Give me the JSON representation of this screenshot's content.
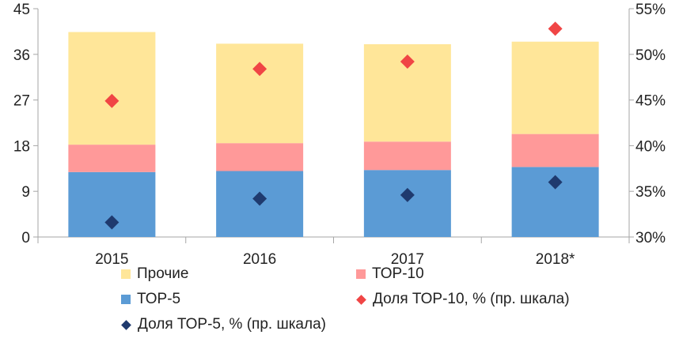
{
  "chart_data": {
    "type": "bar",
    "stacked": true,
    "categories": [
      "2015",
      "2016",
      "2017",
      "2018*"
    ],
    "series": [
      {
        "name": "ТОР-5",
        "color": "#5b9bd5",
        "values": [
          12.8,
          13.0,
          13.2,
          13.8
        ]
      },
      {
        "name": "ТОР-10",
        "color": "#ff9999",
        "values": [
          5.4,
          5.5,
          5.6,
          6.5
        ]
      },
      {
        "name": "Прочие",
        "color": "#ffe699",
        "values": [
          22.2,
          19.6,
          19.2,
          18.2
        ]
      }
    ],
    "line_series": [
      {
        "name": "Доля ТОР-10, % (пр. шкала)",
        "color": "#f04545",
        "axis": "right",
        "values": [
          44.9,
          48.4,
          49.2,
          52.8
        ]
      },
      {
        "name": "Доля ТОР-5, % (пр. шкала)",
        "color": "#1f3a6e",
        "axis": "right",
        "values": [
          31.6,
          34.2,
          34.6,
          36.0
        ]
      }
    ],
    "y_left": {
      "min": 0,
      "max": 45,
      "ticks": [
        "0",
        "9",
        "18",
        "27",
        "36",
        "45"
      ]
    },
    "y_right": {
      "min": 30,
      "max": 55,
      "ticks": [
        "30%",
        "35%",
        "40%",
        "45%",
        "50%",
        "55%"
      ]
    },
    "legend_order": [
      "Прочие",
      "ТОР-10",
      "ТОР-5",
      "Доля ТОР-10, % (пр. шкала)",
      "Доля ТОР-5, % (пр. шкала)"
    ],
    "grid": false
  }
}
